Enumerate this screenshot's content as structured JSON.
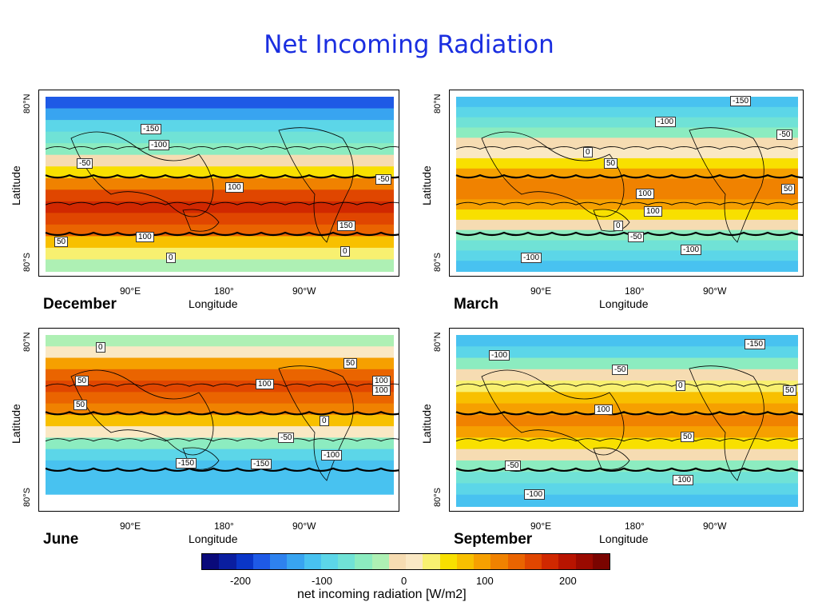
{
  "title": "Net Incoming Radiation",
  "axes": {
    "lat_top": "80°N",
    "lat_bottom": "80°S",
    "lat_label": "Latitude",
    "lon_ticks": [
      "90°E",
      "180°",
      "90°W"
    ],
    "lon_label": "Longitude"
  },
  "panels": [
    {
      "name": "December",
      "labels": [
        "-150",
        "-100",
        "-50",
        "-50",
        "100",
        "150",
        "100",
        "50",
        "0",
        "0"
      ]
    },
    {
      "name": "March",
      "labels": [
        "-150",
        "-100",
        "-50",
        "0",
        "50",
        "100",
        "100",
        "50",
        "0",
        "-50",
        "-100",
        "-100"
      ]
    },
    {
      "name": "June",
      "labels": [
        "0",
        "50",
        "100",
        "100",
        "100",
        "50",
        "50",
        "-50",
        "0",
        "-100",
        "-150",
        "-150"
      ]
    },
    {
      "name": "September",
      "labels": [
        "-150",
        "-100",
        "-50",
        "0",
        "50",
        "100",
        "50",
        "-50",
        "-100",
        "-100"
      ]
    }
  ],
  "colorbar": {
    "ticks": [
      "-200",
      "-100",
      "0",
      "100",
      "200"
    ],
    "label": "net incoming radiation [W/m2]",
    "colors": [
      "#0a0a7a",
      "#0a1ea0",
      "#0a36c8",
      "#1e5ae6",
      "#2e82ee",
      "#38a4f0",
      "#48c2f0",
      "#5cd6e8",
      "#70e2d6",
      "#8cecc0",
      "#aef0b4",
      "#f6dcb2",
      "#fae8c4",
      "#f8f070",
      "#f8e000",
      "#f8c000",
      "#f6a000",
      "#f08200",
      "#ea6400",
      "#e04600",
      "#d02800",
      "#b81400",
      "#9a0a00",
      "#7a0400"
    ]
  },
  "chart_data": [
    {
      "type": "heatmap",
      "title": "December",
      "x": "Longitude",
      "y": "Latitude",
      "contours": [
        -150,
        -100,
        -50,
        0,
        50,
        100,
        150
      ],
      "range": [
        -250,
        250
      ]
    },
    {
      "type": "heatmap",
      "title": "March",
      "x": "Longitude",
      "y": "Latitude",
      "contours": [
        -150,
        -100,
        -50,
        0,
        50,
        100
      ],
      "range": [
        -250,
        250
      ]
    },
    {
      "type": "heatmap",
      "title": "June",
      "x": "Longitude",
      "y": "Latitude",
      "contours": [
        -150,
        -100,
        -50,
        0,
        50,
        100
      ],
      "range": [
        -250,
        250
      ]
    },
    {
      "type": "heatmap",
      "title": "September",
      "x": "Longitude",
      "y": "Latitude",
      "contours": [
        -150,
        -100,
        -50,
        0,
        50,
        100
      ],
      "range": [
        -250,
        250
      ]
    }
  ]
}
